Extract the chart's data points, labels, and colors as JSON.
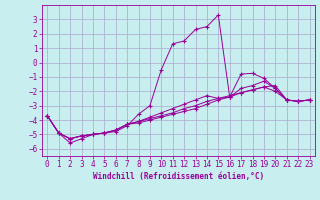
{
  "xlabel": "Windchill (Refroidissement éolien,°C)",
  "bg_color": "#c8eef0",
  "line_color": "#990099",
  "grid_color": "#aaaacc",
  "xlim": [
    -0.5,
    23.5
  ],
  "ylim": [
    -6.5,
    4.0
  ],
  "xticks": [
    0,
    1,
    2,
    3,
    4,
    5,
    6,
    7,
    8,
    9,
    10,
    11,
    12,
    13,
    14,
    15,
    16,
    17,
    18,
    19,
    20,
    21,
    22,
    23
  ],
  "yticks": [
    -6,
    -5,
    -4,
    -3,
    -2,
    -1,
    0,
    1,
    2,
    3
  ],
  "series": [
    [
      0,
      -3.7
    ],
    [
      1,
      -4.9
    ],
    [
      2,
      -5.6
    ],
    [
      3,
      -5.3
    ],
    [
      4,
      -5.0
    ],
    [
      5,
      -4.9
    ],
    [
      6,
      -4.8
    ],
    [
      7,
      -4.4
    ],
    [
      8,
      -3.6
    ],
    [
      9,
      -3.0
    ],
    [
      10,
      -0.5
    ],
    [
      11,
      1.3
    ],
    [
      12,
      1.5
    ],
    [
      13,
      2.3
    ],
    [
      14,
      2.5
    ],
    [
      15,
      3.3
    ],
    [
      16,
      -2.4
    ],
    [
      17,
      -0.8
    ],
    [
      18,
      -0.75
    ],
    [
      19,
      -1.1
    ],
    [
      20,
      -1.8
    ],
    [
      21,
      -2.6
    ],
    [
      22,
      -2.7
    ],
    [
      23,
      -2.6
    ]
  ],
  "series2": [
    [
      0,
      -3.7
    ],
    [
      1,
      -4.9
    ],
    [
      2,
      -5.3
    ],
    [
      3,
      -5.1
    ],
    [
      4,
      -5.0
    ],
    [
      5,
      -4.9
    ],
    [
      6,
      -4.7
    ],
    [
      7,
      -4.3
    ],
    [
      8,
      -4.1
    ],
    [
      9,
      -3.9
    ],
    [
      10,
      -3.7
    ],
    [
      11,
      -3.5
    ],
    [
      12,
      -3.2
    ],
    [
      13,
      -3.0
    ],
    [
      14,
      -2.7
    ],
    [
      15,
      -2.5
    ],
    [
      16,
      -2.3
    ],
    [
      17,
      -2.1
    ],
    [
      18,
      -1.9
    ],
    [
      19,
      -1.7
    ],
    [
      20,
      -1.6
    ],
    [
      21,
      -2.6
    ],
    [
      22,
      -2.7
    ],
    [
      23,
      -2.6
    ]
  ],
  "series3": [
    [
      0,
      -3.7
    ],
    [
      1,
      -4.9
    ],
    [
      2,
      -5.3
    ],
    [
      3,
      -5.1
    ],
    [
      4,
      -5.0
    ],
    [
      5,
      -4.9
    ],
    [
      6,
      -4.7
    ],
    [
      7,
      -4.3
    ],
    [
      8,
      -4.2
    ],
    [
      9,
      -4.0
    ],
    [
      10,
      -3.8
    ],
    [
      11,
      -3.6
    ],
    [
      12,
      -3.4
    ],
    [
      13,
      -3.2
    ],
    [
      14,
      -2.9
    ],
    [
      15,
      -2.6
    ],
    [
      16,
      -2.4
    ],
    [
      17,
      -1.8
    ],
    [
      18,
      -1.6
    ],
    [
      19,
      -1.3
    ],
    [
      20,
      -1.8
    ],
    [
      21,
      -2.6
    ],
    [
      22,
      -2.7
    ],
    [
      23,
      -2.6
    ]
  ],
  "series4": [
    [
      0,
      -3.7
    ],
    [
      1,
      -4.9
    ],
    [
      2,
      -5.3
    ],
    [
      3,
      -5.1
    ],
    [
      4,
      -5.0
    ],
    [
      5,
      -4.9
    ],
    [
      6,
      -4.7
    ],
    [
      7,
      -4.3
    ],
    [
      8,
      -4.1
    ],
    [
      9,
      -3.8
    ],
    [
      10,
      -3.5
    ],
    [
      11,
      -3.2
    ],
    [
      12,
      -2.9
    ],
    [
      13,
      -2.6
    ],
    [
      14,
      -2.3
    ],
    [
      15,
      -2.5
    ],
    [
      16,
      -2.4
    ],
    [
      17,
      -2.1
    ],
    [
      18,
      -1.9
    ],
    [
      19,
      -1.7
    ],
    [
      20,
      -2.0
    ],
    [
      21,
      -2.6
    ],
    [
      22,
      -2.7
    ],
    [
      23,
      -2.6
    ]
  ],
  "tick_fontsize": 5.5,
  "xlabel_fontsize": 5.5
}
